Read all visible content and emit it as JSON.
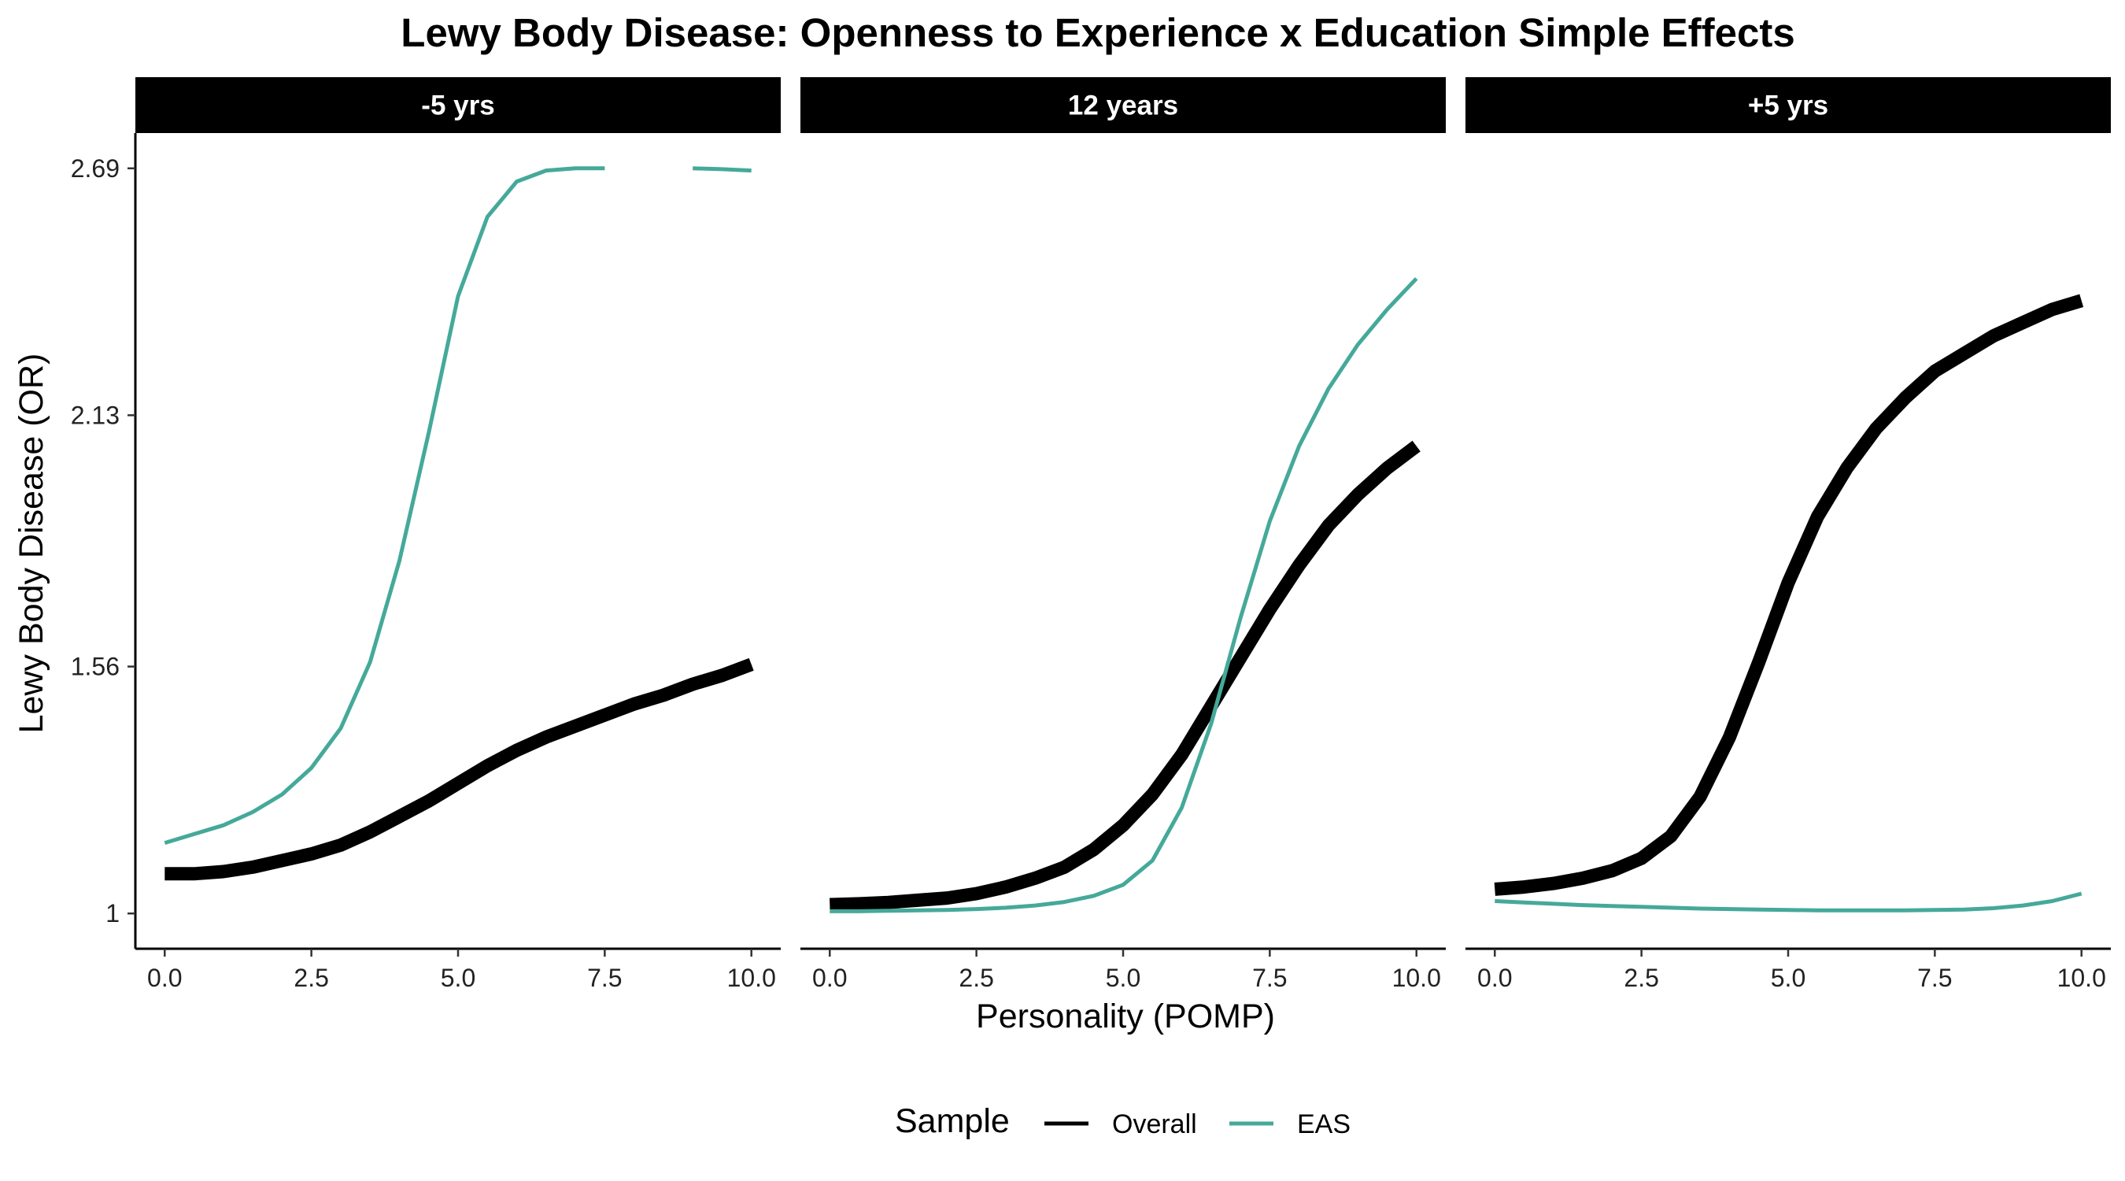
{
  "chart_data": {
    "type": "line",
    "title": "Lewy Body Disease: Openness to Experience x Education Simple Effects",
    "xlabel": "Personality (POMP)",
    "ylabel": "Lewy Body Disease (OR)",
    "xlim": [
      -0.5,
      10.5
    ],
    "ylim": [
      0.92,
      2.77
    ],
    "x_ticks": [
      0,
      2.5,
      5,
      7.5,
      10
    ],
    "x_tick_labels": [
      "0.0",
      "2.5",
      "5.0",
      "7.5",
      "10.0"
    ],
    "y_ticks": [
      1,
      1.56,
      2.13,
      2.69
    ],
    "y_tick_labels": [
      "1",
      "1.56",
      "2.13",
      "2.69"
    ],
    "legend": {
      "title": "Sample",
      "position": "bottom",
      "entries": [
        {
          "name": "Overall",
          "color": "#000000"
        },
        {
          "name": "EAS",
          "color": "#45a99a"
        }
      ]
    },
    "panels": [
      {
        "label": "-5 yrs",
        "series": [
          {
            "name": "Overall",
            "color": "#000000",
            "x": [
              0,
              0.5,
              1,
              1.5,
              2,
              2.5,
              3,
              3.5,
              4,
              4.5,
              5,
              5.5,
              6,
              6.5,
              7,
              7.5,
              8,
              8.5,
              9,
              9.5,
              10
            ],
            "y": [
              1.09,
              1.09,
              1.095,
              1.105,
              1.12,
              1.135,
              1.155,
              1.185,
              1.22,
              1.255,
              1.295,
              1.335,
              1.37,
              1.4,
              1.425,
              1.45,
              1.475,
              1.495,
              1.52,
              1.54,
              1.565
            ]
          },
          {
            "name": "EAS",
            "color": "#45a99a",
            "x": [
              0,
              0.5,
              1,
              1.5,
              2,
              2.5,
              3,
              3.5,
              4,
              4.5,
              5,
              5.5,
              6,
              6.5,
              7,
              7.5,
              8,
              8.5,
              9,
              9.5,
              10
            ],
            "y": [
              1.16,
              1.18,
              1.2,
              1.23,
              1.27,
              1.33,
              1.42,
              1.57,
              1.8,
              2.09,
              2.4,
              2.58,
              2.66,
              2.685,
              2.69,
              2.69,
              null,
              null,
              2.69,
              2.688,
              2.685
            ]
          }
        ]
      },
      {
        "label": "12 years",
        "series": [
          {
            "name": "Overall",
            "color": "#000000",
            "x": [
              0,
              0.5,
              1,
              1.5,
              2,
              2.5,
              3,
              3.5,
              4,
              4.5,
              5,
              5.5,
              6,
              6.5,
              7,
              7.5,
              8,
              8.5,
              9,
              9.5,
              10
            ],
            "y": [
              1.02,
              1.022,
              1.025,
              1.03,
              1.035,
              1.045,
              1.06,
              1.08,
              1.105,
              1.145,
              1.2,
              1.27,
              1.36,
              1.47,
              1.58,
              1.69,
              1.79,
              1.88,
              1.95,
              2.01,
              2.06
            ]
          },
          {
            "name": "EAS",
            "color": "#45a99a",
            "x": [
              0,
              0.5,
              1,
              1.5,
              2,
              2.5,
              3,
              3.5,
              4,
              4.5,
              5,
              5.5,
              6,
              6.5,
              7,
              7.5,
              8,
              8.5,
              9,
              9.5,
              10
            ],
            "y": [
              1.005,
              1.005,
              1.006,
              1.007,
              1.008,
              1.01,
              1.013,
              1.018,
              1.026,
              1.04,
              1.065,
              1.12,
              1.24,
              1.43,
              1.67,
              1.89,
              2.06,
              2.19,
              2.29,
              2.37,
              2.44
            ]
          }
        ]
      },
      {
        "label": "+5 yrs",
        "series": [
          {
            "name": "Overall",
            "color": "#000000",
            "x": [
              0,
              0.5,
              1,
              1.5,
              2,
              2.5,
              3,
              3.5,
              4,
              4.5,
              5,
              5.5,
              6,
              6.5,
              7,
              7.5,
              8,
              8.5,
              9,
              9.5,
              10
            ],
            "y": [
              1.055,
              1.06,
              1.068,
              1.08,
              1.097,
              1.125,
              1.175,
              1.265,
              1.4,
              1.57,
              1.75,
              1.9,
              2.01,
              2.1,
              2.17,
              2.23,
              2.27,
              2.31,
              2.34,
              2.37,
              2.39
            ]
          },
          {
            "name": "EAS",
            "color": "#45a99a",
            "x": [
              0,
              0.5,
              1,
              1.5,
              2,
              2.5,
              3,
              3.5,
              4,
              4.5,
              5,
              5.5,
              6,
              6.5,
              7,
              7.5,
              8,
              8.5,
              9,
              9.5,
              10
            ],
            "y": [
              1.028,
              1.025,
              1.022,
              1.019,
              1.017,
              1.015,
              1.013,
              1.011,
              1.01,
              1.009,
              1.008,
              1.007,
              1.007,
              1.007,
              1.007,
              1.008,
              1.009,
              1.012,
              1.018,
              1.028,
              1.045
            ]
          }
        ]
      }
    ]
  }
}
